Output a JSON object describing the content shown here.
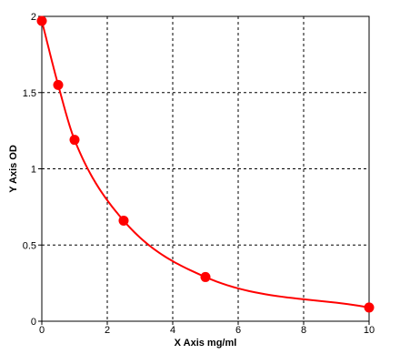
{
  "chart_data": {
    "type": "scatter",
    "title": "",
    "xlabel": "X Axis mg/ml",
    "ylabel": "Y Axis OD",
    "xlim": [
      0,
      10
    ],
    "ylim": [
      0,
      2
    ],
    "x_ticks": [
      0,
      2,
      4,
      6,
      8,
      10
    ],
    "y_ticks": [
      0,
      0.5,
      1,
      1.5,
      2
    ],
    "x_tick_labels": [
      "0",
      "2",
      "4",
      "6",
      "8",
      "10"
    ],
    "y_tick_labels": [
      "0",
      "0.5",
      "1",
      "1.5",
      "2"
    ],
    "grid": true,
    "fit_curve": true,
    "series": [
      {
        "color": "#ff0000",
        "x": [
          0,
          0.5,
          1,
          2.5,
          5,
          10
        ],
        "y": [
          1.97,
          1.55,
          1.19,
          0.66,
          0.29,
          0.09
        ]
      }
    ]
  }
}
